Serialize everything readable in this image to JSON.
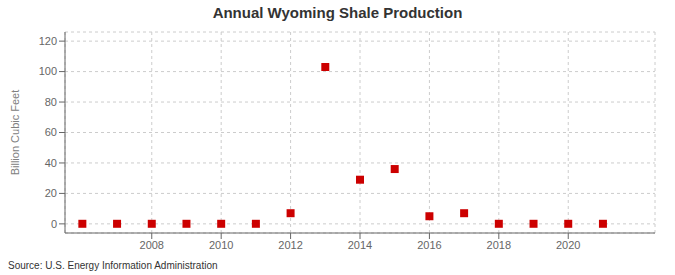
{
  "chart_data": {
    "type": "scatter",
    "title": "Annual Wyoming Shale Production",
    "ylabel": "Billion Cubic Feet",
    "annotation": "Source: U.S. Energy Information Administration",
    "x": [
      2006,
      2007,
      2008,
      2009,
      2010,
      2011,
      2012,
      2013,
      2014,
      2015,
      2016,
      2017,
      2018,
      2019,
      2020,
      2021
    ],
    "values": [
      0.05,
      0.05,
      0.05,
      0.05,
      0.05,
      0.05,
      7.0,
      103.0,
      29.0,
      36.0,
      5.0,
      7.0,
      0.05,
      0.05,
      0.05,
      0.05
    ],
    "color": "#cc0000",
    "marker": "square",
    "xlim": [
      2005.5,
      2022.5
    ],
    "xticks": [
      2008,
      2010,
      2012,
      2014,
      2016,
      2018,
      2020
    ],
    "ylim": [
      -6,
      126
    ],
    "yticks": [
      0,
      20,
      40,
      60,
      80,
      100,
      120
    ],
    "grid": true
  }
}
